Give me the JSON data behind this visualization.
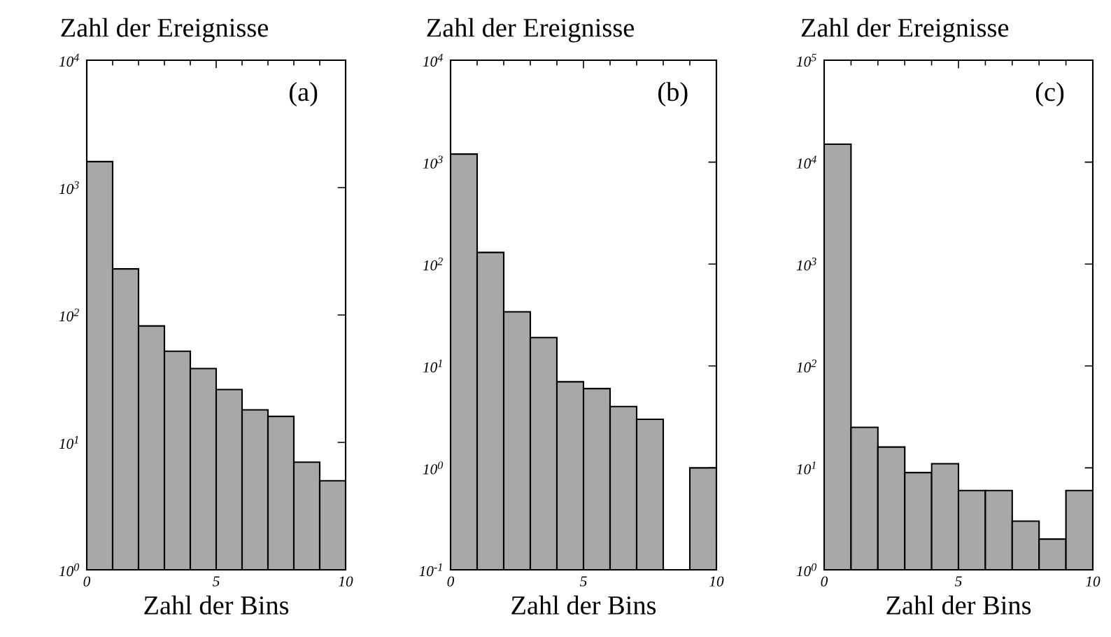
{
  "chart_data": [
    {
      "type": "histogram",
      "ylabel": "Zahl der Ereignisse",
      "xlabel": "Zahl der Bins",
      "annotations": [
        "(a)"
      ],
      "log": true,
      "color": "#a8a8a8",
      "bins": [
        0,
        1,
        2,
        3,
        4,
        5,
        6,
        7,
        8,
        9,
        10
      ],
      "values": [
        1600,
        230,
        82,
        52,
        38,
        26,
        18,
        16,
        7,
        5
      ],
      "xlim": [
        0,
        10
      ],
      "xticks": [
        0,
        5,
        10
      ],
      "ylim": [
        1,
        10000
      ],
      "yticks": [
        {
          "value": 1,
          "label": "10$^{0}$"
        },
        {
          "value": 10,
          "label": "10$^{1}$"
        },
        {
          "value": 100,
          "label": "10$^{2}$"
        },
        {
          "value": 1000,
          "label": "10$^{3}$"
        },
        {
          "value": 10000,
          "label": "10$^{4}$"
        }
      ]
    },
    {
      "type": "histogram",
      "ylabel": "Zahl der Ereignisse",
      "xlabel": "Zahl der Bins",
      "annotations": [
        "(b)"
      ],
      "log": true,
      "color": "#a8a8a8",
      "bins": [
        0,
        1,
        2,
        3,
        4,
        5,
        6,
        7,
        8,
        9,
        10
      ],
      "values": [
        1200,
        130,
        34,
        19,
        7,
        6,
        4,
        3,
        null,
        1
      ],
      "xlim": [
        0,
        10
      ],
      "xticks": [
        0,
        5,
        10
      ],
      "ylim": [
        0.1,
        10000
      ],
      "yticks": [
        {
          "value": 0.1,
          "label": "10$^{-1}$"
        },
        {
          "value": 1,
          "label": "10$^{0}$"
        },
        {
          "value": 10,
          "label": "10$^{1}$"
        },
        {
          "value": 100,
          "label": "10$^{2}$"
        },
        {
          "value": 1000,
          "label": "10$^{3}$"
        },
        {
          "value": 10000,
          "label": "10$^{4}$"
        }
      ]
    },
    {
      "type": "histogram",
      "ylabel": "Zahl der Ereignisse",
      "xlabel": "Zahl der Bins",
      "annotations": [
        "(c)"
      ],
      "log": true,
      "color": "#a8a8a8",
      "bins": [
        0,
        1,
        2,
        3,
        4,
        5,
        6,
        7,
        8,
        9,
        10
      ],
      "values": [
        15000,
        25,
        16,
        9,
        11,
        6,
        6,
        3,
        2,
        6
      ],
      "xlim": [
        0,
        10
      ],
      "xticks": [
        0,
        5,
        10
      ],
      "ylim": [
        1,
        100000
      ],
      "yticks": [
        {
          "value": 1,
          "label": "10$^{0}$"
        },
        {
          "value": 10,
          "label": "10$^{1}$"
        },
        {
          "value": 100,
          "label": "10$^{2}$"
        },
        {
          "value": 1000,
          "label": "10$^{3}$"
        },
        {
          "value": 10000,
          "label": "10$^{4}$"
        },
        {
          "value": 100000,
          "label": "10$^{5}$"
        }
      ]
    }
  ]
}
